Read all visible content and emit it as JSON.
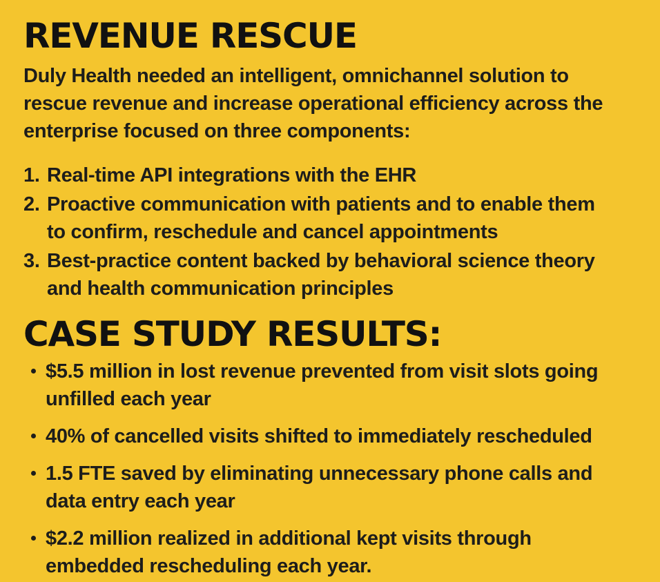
{
  "theme": {
    "background": "#F4C52E",
    "text": "#1D1D1B",
    "heading": "#111111"
  },
  "revenue_section": {
    "title": "REVENUE RESCUE",
    "intro": "Duly Health needed an intelligent, omnichannel solution to rescue revenue and increase operational efficiency across the enterprise focused on three components:",
    "numbered_items": [
      {
        "number": "1.",
        "text": "Real-time API integrations with the EHR"
      },
      {
        "number": "2.",
        "text": "Proactive communication with patients and to enable them to confirm, reschedule and cancel appointments"
      },
      {
        "number": "3.",
        "text": "Best-practice content backed by behavioral science theory and health communication principles"
      }
    ]
  },
  "results_section": {
    "title": "CASE STUDY RESULTS:",
    "bullet_items": [
      {
        "text": "$5.5 million in lost revenue prevented from visit slots going unfilled each year"
      },
      {
        "text": "40% of cancelled visits shifted to immediately rescheduled"
      },
      {
        "text": "1.5 FTE saved by eliminating unnecessary phone calls and data entry each year"
      },
      {
        "text": "$2.2 million realized in additional kept visits through embedded rescheduling each year."
      }
    ]
  }
}
